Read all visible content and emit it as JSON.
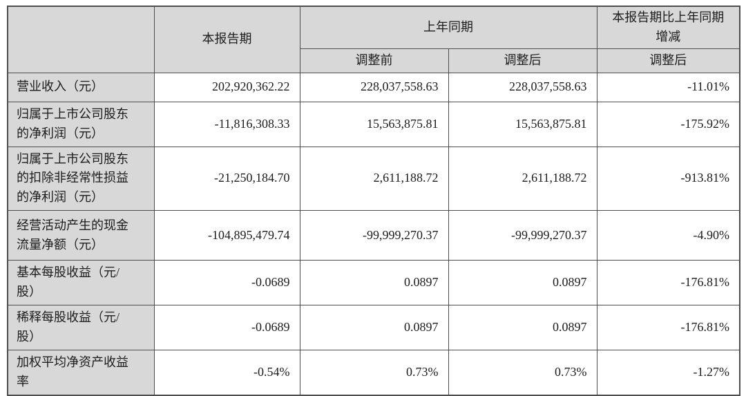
{
  "table": {
    "header": {
      "corner": "",
      "current_period": "本报告期",
      "prior_period": "上年同期",
      "change_title": "本报告期比上年同期增减",
      "sub_before_adjust": "调整前",
      "sub_after_adjust": "调整后",
      "sub_change_after_adjust": "调整后"
    },
    "rows": [
      {
        "label": "营业收入（元）",
        "current": "202,920,362.22",
        "prior_before": "228,037,558.63",
        "prior_after": "228,037,558.63",
        "change": "-11.01%"
      },
      {
        "label": "归属于上市公司股东的净利润（元）",
        "current": "-11,816,308.33",
        "prior_before": "15,563,875.81",
        "prior_after": "15,563,875.81",
        "change": "-175.92%"
      },
      {
        "label": "归属于上市公司股东的扣除非经常性损益的净利润（元）",
        "current": "-21,250,184.70",
        "prior_before": "2,611,188.72",
        "prior_after": "2,611,188.72",
        "change": "-913.81%"
      },
      {
        "label": "经营活动产生的现金流量净额（元）",
        "current": "-104,895,479.74",
        "prior_before": "-99,999,270.37",
        "prior_after": "-99,999,270.37",
        "change": "-4.90%"
      },
      {
        "label": "基本每股收益（元/股）",
        "current": "-0.0689",
        "prior_before": "0.0897",
        "prior_after": "0.0897",
        "change": "-176.81%"
      },
      {
        "label": "稀释每股收益（元/股）",
        "current": "-0.0689",
        "prior_before": "0.0897",
        "prior_after": "0.0897",
        "change": "-176.81%"
      },
      {
        "label": "加权平均净资产收益率",
        "current": "-0.54%",
        "prior_before": "0.73%",
        "prior_after": "0.73%",
        "change": "-1.27%"
      }
    ]
  },
  "colors": {
    "header_bg": "#d8d8d8",
    "border": "#4d4d4d",
    "text": "#1c1c1c",
    "cell_bg": "#ffffff"
  }
}
